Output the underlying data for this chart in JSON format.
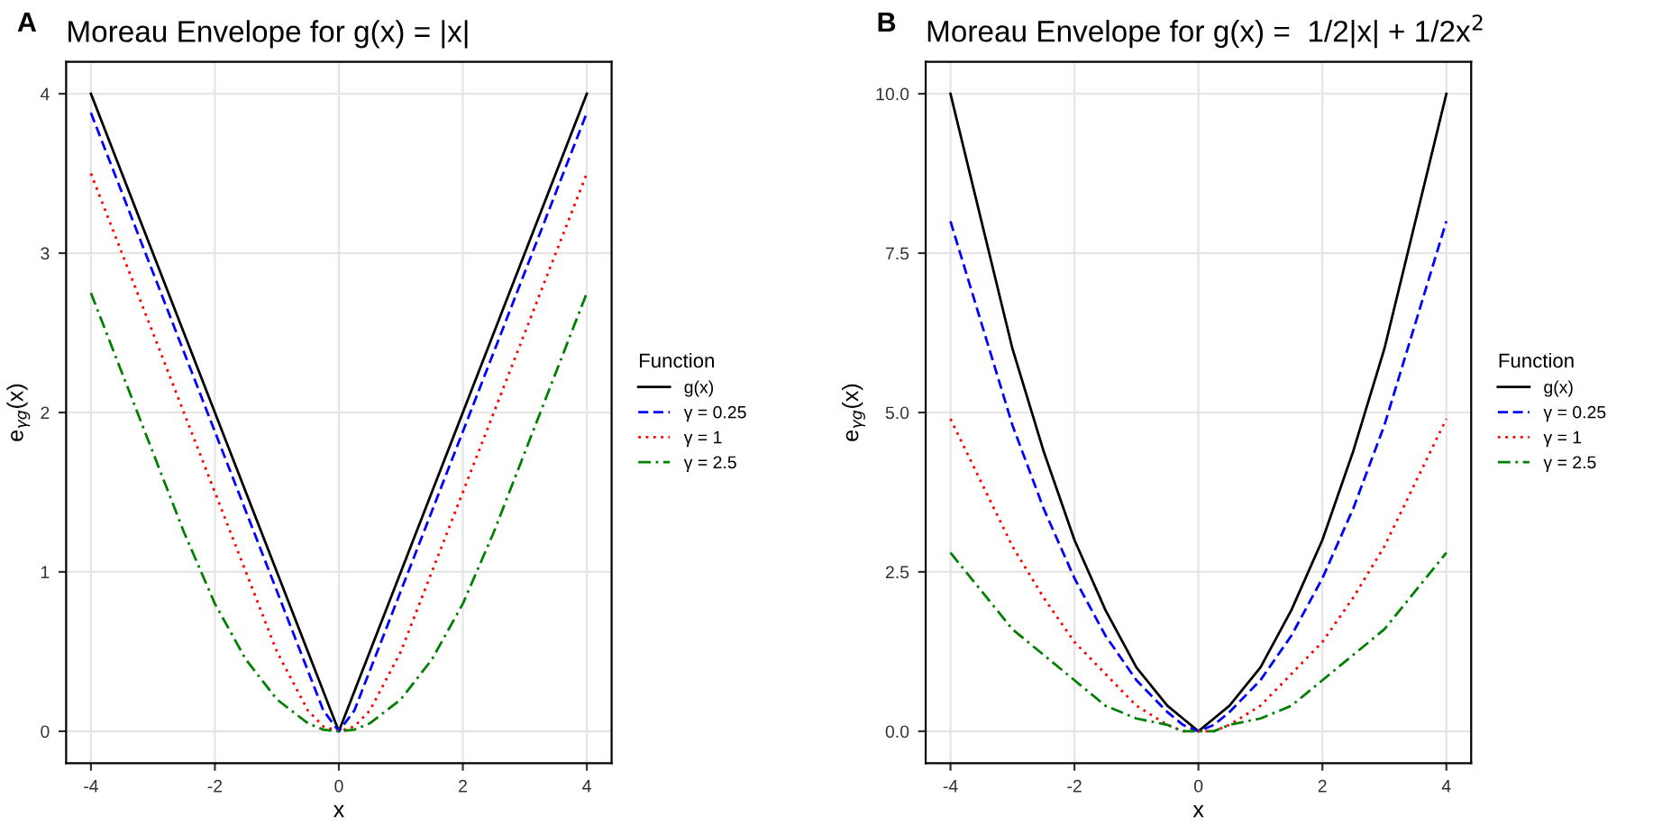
{
  "chart_data": [
    {
      "type": "line",
      "title": "Moreau Envelope for g(x) = |x|",
      "xlabel": "x",
      "ylabel": "e$_{γg}$(x)",
      "legend_title": "Function",
      "annotations": [
        "A"
      ],
      "x": [
        -4,
        -3,
        -2.5,
        -2,
        -1.5,
        -1,
        -0.5,
        -0.25,
        0,
        0.25,
        0.5,
        1,
        1.5,
        2,
        2.5,
        3,
        4
      ],
      "series": [
        {
          "name": "g(x)",
          "color": "#000000",
          "line_style": "solid",
          "values": [
            4,
            3,
            2.5,
            2,
            1.5,
            1,
            0.5,
            0.25,
            0,
            0.25,
            0.5,
            1,
            1.5,
            2,
            2.5,
            3,
            4
          ]
        },
        {
          "name": "γ = 0.25",
          "color": "#0000ff",
          "line_style": "dashed",
          "values": [
            3.88,
            2.88,
            2.38,
            1.88,
            1.38,
            0.88,
            0.38,
            0.13,
            0,
            0.13,
            0.38,
            0.88,
            1.38,
            1.88,
            2.38,
            2.88,
            3.88
          ]
        },
        {
          "name": "γ = 1",
          "color": "#ff0000",
          "line_style": "dotted",
          "values": [
            3.5,
            2.5,
            2,
            1.5,
            1,
            0.5,
            0.13,
            0.03,
            0,
            0.03,
            0.13,
            0.5,
            1,
            1.5,
            2,
            2.5,
            3.5
          ]
        },
        {
          "name": "γ = 2.5",
          "color": "#008000",
          "line_style": "dashdot",
          "values": [
            2.75,
            1.75,
            1.25,
            0.8,
            0.45,
            0.2,
            0.05,
            0.01,
            0,
            0.01,
            0.05,
            0.2,
            0.45,
            0.8,
            1.25,
            1.75,
            2.75
          ]
        }
      ],
      "xlim": [
        -4.4,
        4.4
      ],
      "ylim": [
        -0.2,
        4.2
      ],
      "xticks": [
        -4,
        -2,
        0,
        2,
        4
      ],
      "yticks": [
        0,
        1,
        2,
        3,
        4
      ],
      "grid": true,
      "legend": "right"
    },
    {
      "type": "line",
      "title": "Moreau Envelope for g(x) =  1/2|x| + 1/2x$^{2}$",
      "xlabel": "x",
      "ylabel": "e$_{γg}$(x)",
      "legend_title": "Function",
      "annotations": [
        "B"
      ],
      "x": [
        -4,
        -3,
        -2.5,
        -2,
        -1.5,
        -1,
        -0.5,
        -0.25,
        0,
        0.25,
        0.5,
        1,
        1.5,
        2,
        2.5,
        3,
        4
      ],
      "series": [
        {
          "name": "g(x)",
          "color": "#000000",
          "line_style": "solid",
          "values": [
            10,
            6,
            4.4,
            3,
            1.9,
            1,
            0.4,
            0.2,
            0,
            0.2,
            0.4,
            1,
            1.9,
            3,
            4.4,
            6,
            10
          ]
        },
        {
          "name": "γ = 0.25",
          "color": "#0000ff",
          "line_style": "dashed",
          "values": [
            8,
            4.8,
            3.5,
            2.4,
            1.5,
            0.8,
            0.3,
            0.1,
            0,
            0.1,
            0.3,
            0.8,
            1.5,
            2.4,
            3.5,
            4.8,
            8
          ]
        },
        {
          "name": "γ = 1",
          "color": "#ff0000",
          "line_style": "dotted",
          "values": [
            4.9,
            2.9,
            2.1,
            1.4,
            0.9,
            0.4,
            0.1,
            0,
            0,
            0,
            0.1,
            0.4,
            0.9,
            1.4,
            2.1,
            2.9,
            4.9
          ]
        },
        {
          "name": "γ = 2.5",
          "color": "#008000",
          "line_style": "dashdot",
          "values": [
            2.8,
            1.6,
            1.2,
            0.8,
            0.4,
            0.2,
            0.1,
            0,
            0,
            0,
            0.1,
            0.2,
            0.4,
            0.8,
            1.2,
            1.6,
            2.8
          ]
        }
      ],
      "xlim": [
        -4.4,
        4.4
      ],
      "ylim": [
        -0.5,
        10.5
      ],
      "xticks": [
        -4,
        -2,
        0,
        2,
        4
      ],
      "yticks": [
        {
          "value": 0,
          "label": "0.0"
        },
        {
          "value": 2.5,
          "label": "2.5"
        },
        {
          "value": 5,
          "label": "5.0"
        },
        {
          "value": 7.5,
          "label": "7.5"
        },
        {
          "value": 10,
          "label": "10.0"
        }
      ],
      "grid": true,
      "legend": "right"
    }
  ]
}
